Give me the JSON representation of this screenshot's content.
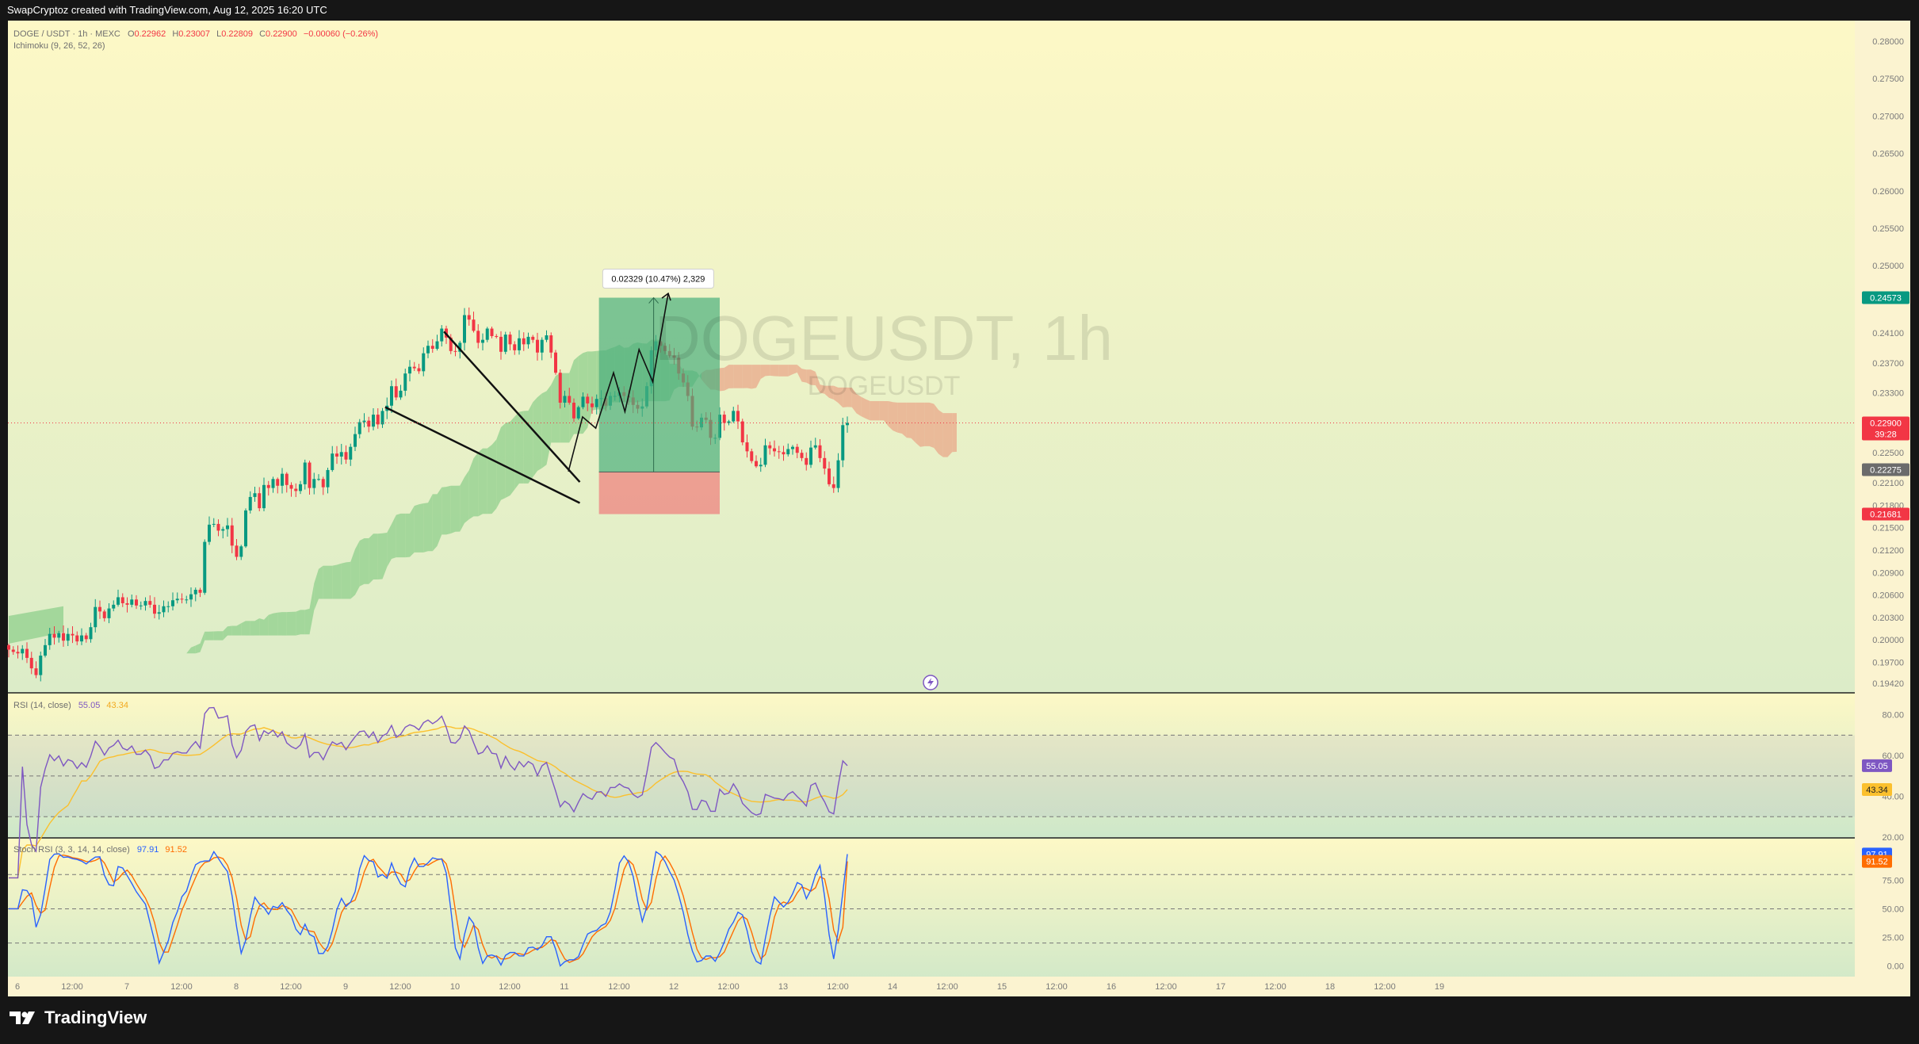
{
  "header": {
    "attribution": "SwapCryptoz created with TradingView.com, Aug 12, 2025 16:20 UTC"
  },
  "footer": {
    "brand": "TradingView",
    "logo_icon": "tradingview-logo-icon"
  },
  "colors": {
    "up": "#089981",
    "down": "#f23645",
    "ichimoku_green": "#8fcf8c",
    "ichimoku_red": "#e9a78a",
    "rsi": "#7e57c2",
    "rsi_ma": "#fbc02d",
    "stoch_k": "#2962ff",
    "stoch_d": "#ff6d00",
    "target_zone": "#4caf7e",
    "stop_zone": "#ef7c7c"
  },
  "chart_data": [
    {
      "type": "candlestick",
      "legend": {
        "symbol": "DOGE / USDT · 1h · MEXC",
        "o_label": "O",
        "o": "0.22962",
        "h_label": "H",
        "h": "0.23007",
        "l_label": "L",
        "l": "0.22809",
        "c_label": "C",
        "c": "0.22900",
        "change": "−0.00060 (−0.26%)",
        "indicator": "Ichimoku (9, 26, 52, 26)"
      },
      "watermark": {
        "symbol": "DOGEUSDT, 1h",
        "sub": "DOGEUSDT"
      },
      "y_ticks": [
        "0.28000",
        "0.27500",
        "0.27000",
        "0.26500",
        "0.26000",
        "0.25500",
        "0.25000",
        "0.24100",
        "0.23700",
        "0.23300",
        "0.22500",
        "0.22100",
        "0.21800",
        "0.21500",
        "0.21200",
        "0.20900",
        "0.20600",
        "0.20300",
        "0.20000",
        "0.19700",
        "0.19420"
      ],
      "y_tick_values": [
        0.28,
        0.275,
        0.27,
        0.265,
        0.26,
        0.255,
        0.25,
        0.241,
        0.237,
        0.233,
        0.225,
        0.221,
        0.218,
        0.215,
        0.212,
        0.209,
        0.206,
        0.203,
        0.2,
        0.197,
        0.1942
      ],
      "price_badges": [
        {
          "label": "0.24573",
          "value": 0.24573,
          "color": "#089981"
        },
        {
          "label": "0.22900",
          "sub": "39:28",
          "value": 0.229,
          "color": "#f23645"
        },
        {
          "label": "0.22275",
          "value": 0.22275,
          "color": "#6b6b6b"
        },
        {
          "label": "0.21681",
          "value": 0.21681,
          "color": "#f23645"
        }
      ],
      "position_tool": {
        "entry": 0.22244,
        "target": 0.24573,
        "stop": 0.21681,
        "label": "0.02329 (10.47%) 2,329"
      },
      "trendlines": [
        {
          "from": [
            95.5,
            0.2412
          ],
          "to": [
            125.3,
            0.2211
          ]
        },
        {
          "from": [
            82.6,
            0.2311
          ],
          "to": [
            125.3,
            0.2183
          ]
        }
      ],
      "projection_path": [
        [
          122.8,
          0.2225
        ],
        [
          125.9,
          0.2298
        ],
        [
          128.8,
          0.2283
        ],
        [
          132.7,
          0.2357
        ],
        [
          135.2,
          0.2305
        ],
        [
          138.3,
          0.2388
        ],
        [
          141.3,
          0.2345
        ],
        [
          144.7,
          0.2463
        ]
      ],
      "close": [
        0.1987,
        0.1984,
        0.1982,
        0.1988,
        0.1976,
        0.1962,
        0.1953,
        0.1979,
        0.1993,
        0.2008,
        0.2003,
        0.2009,
        0.1999,
        0.2008,
        0.2006,
        0.1998,
        0.2006,
        0.2001,
        0.2017,
        0.2044,
        0.2038,
        0.2029,
        0.2042,
        0.2047,
        0.2057,
        0.2049,
        0.2047,
        0.2054,
        0.2046,
        0.2046,
        0.2052,
        0.2047,
        0.2035,
        0.2037,
        0.2045,
        0.2045,
        0.2053,
        0.2055,
        0.2054,
        0.2054,
        0.2061,
        0.2067,
        0.2063,
        0.2131,
        0.2154,
        0.2155,
        0.2146,
        0.2148,
        0.2153,
        0.2126,
        0.2111,
        0.2125,
        0.2173,
        0.2191,
        0.2196,
        0.2176,
        0.2207,
        0.2203,
        0.2215,
        0.2206,
        0.2222,
        0.2207,
        0.2202,
        0.2199,
        0.2208,
        0.2237,
        0.2203,
        0.2215,
        0.2215,
        0.2204,
        0.2227,
        0.2249,
        0.2245,
        0.2251,
        0.2241,
        0.2258,
        0.2275,
        0.2291,
        0.2293,
        0.2285,
        0.2301,
        0.2288,
        0.2306,
        0.2313,
        0.2339,
        0.2324,
        0.2333,
        0.2356,
        0.2365,
        0.2363,
        0.2359,
        0.2383,
        0.2393,
        0.2389,
        0.2399,
        0.2416,
        0.2404,
        0.2386,
        0.2385,
        0.2397,
        0.2434,
        0.2428,
        0.2413,
        0.2397,
        0.2401,
        0.2416,
        0.2406,
        0.2405,
        0.2385,
        0.2408,
        0.2395,
        0.2387,
        0.2403,
        0.2395,
        0.2405,
        0.2401,
        0.2384,
        0.2401,
        0.2407,
        0.2384,
        0.2357,
        0.2317,
        0.2326,
        0.2317,
        0.2296,
        0.2311,
        0.2325,
        0.2316,
        0.2311,
        0.2322,
        0.2323,
        0.2313,
        0.2326,
        0.2326,
        0.2331,
        0.2326,
        0.2324,
        0.2314,
        0.2309,
        0.2312,
        0.2339,
        0.2387,
        0.2399,
        0.2393,
        0.2386,
        0.238,
        0.2377,
        0.2356,
        0.2344,
        0.2326,
        0.2285,
        0.2284,
        0.2297,
        0.2294,
        0.227,
        0.227,
        0.2301,
        0.229,
        0.2292,
        0.2306,
        0.2292,
        0.2264,
        0.2252,
        0.2239,
        0.2232,
        0.2234,
        0.226,
        0.2256,
        0.2252,
        0.2251,
        0.2248,
        0.2255,
        0.2258,
        0.225,
        0.2243,
        0.2234,
        0.2257,
        0.226,
        0.2243,
        0.2229,
        0.2208,
        0.2203,
        0.224,
        0.2287,
        0.229
      ]
    },
    {
      "type": "line",
      "legend": {
        "label": "RSI (14, close)",
        "value": "55.05",
        "ma": "43.34"
      },
      "y_ticks": [
        "80.00",
        "60.00",
        "40.00",
        "20.00"
      ],
      "y_tick_values": [
        80,
        60,
        40,
        20
      ],
      "bands": [
        70,
        50,
        30
      ],
      "badges": [
        {
          "label": "55.05",
          "value": 55.05,
          "color": "#7e57c2"
        },
        {
          "label": "43.34",
          "value": 43.34,
          "color": "#fbc02d"
        }
      ],
      "ylim": [
        20,
        90
      ]
    },
    {
      "type": "line",
      "legend": {
        "label": "Stoch RSI (3, 3, 14, 14, close)",
        "k": "97.91",
        "d": "91.52"
      },
      "y_ticks": [
        "97.91",
        "75.00",
        "50.00",
        "25.00",
        "0.00"
      ],
      "y_tick_values": [
        97.91,
        75,
        50,
        25,
        0
      ],
      "bands": [
        80,
        50,
        20
      ],
      "badges": [
        {
          "label": "97.91",
          "value": 97.91,
          "color": "#2962ff"
        },
        {
          "label": "91.52",
          "value": 91.52,
          "color": "#ff6d00"
        }
      ],
      "ylim": [
        -8,
        110
      ]
    }
  ],
  "x_axis": {
    "labels": [
      "6",
      "12:00",
      "7",
      "12:00",
      "8",
      "12:00",
      "9",
      "12:00",
      "10",
      "12:00",
      "11",
      "12:00",
      "12",
      "12:00",
      "13",
      "12:00",
      "14",
      "12:00",
      "15",
      "12:00",
      "16",
      "12:00",
      "17",
      "12:00",
      "18",
      "12:00",
      "19"
    ],
    "start_hour": 0,
    "step_hours": 12
  }
}
